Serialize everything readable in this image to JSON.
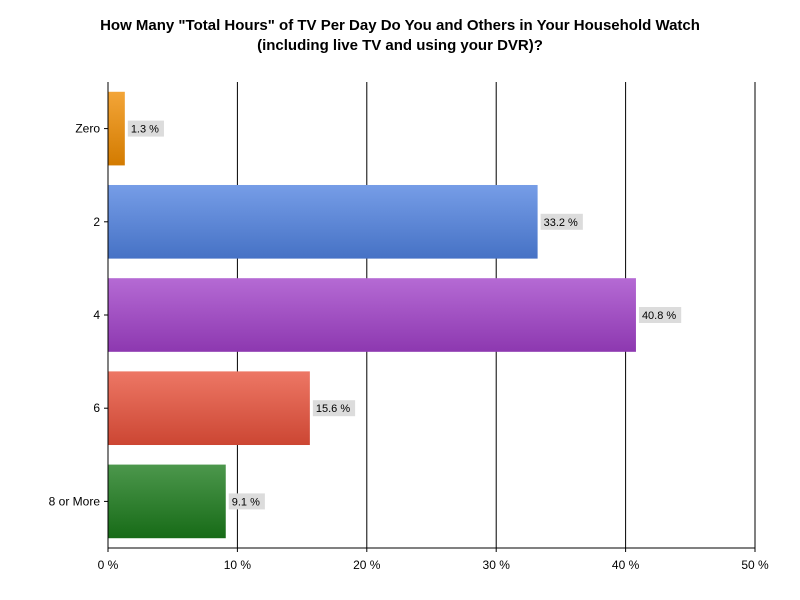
{
  "chart_data": {
    "type": "bar",
    "orientation": "horizontal",
    "title": [
      "How Many \"Total Hours\" of TV Per Day Do You and Others in Your Household Watch",
      "(including live TV and using your DVR)?"
    ],
    "categories": [
      "Zero",
      "2",
      "4",
      "6",
      "8 or More"
    ],
    "values": [
      1.3,
      33.2,
      40.8,
      15.6,
      9.1
    ],
    "data_labels": [
      "1.3 %",
      "33.2 %",
      "40.8 %",
      "15.6 %",
      "9.1 %"
    ],
    "colors": [
      "#F08C00",
      "#4F81E0",
      "#A040C8",
      "#E8503A",
      "#1A7A1A"
    ],
    "xlim": [
      0,
      50
    ],
    "xticks": [
      0,
      10,
      20,
      30,
      40,
      50
    ],
    "xtick_labels": [
      "0 %",
      "10 %",
      "20 %",
      "30 %",
      "40 %",
      "50 %"
    ],
    "xlabel": "",
    "ylabel": "",
    "grid": "vertical",
    "legend": "none"
  }
}
